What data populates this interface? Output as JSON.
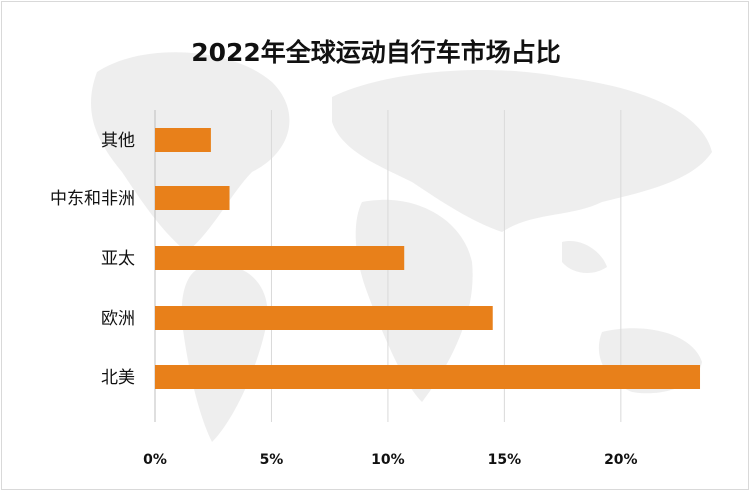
{
  "chart_data": {
    "type": "bar",
    "orientation": "horizontal",
    "title": "2022年全球运动自行车市场占比",
    "xlabel": "",
    "ylabel": "",
    "categories": [
      "北美",
      "欧洲",
      "亚太",
      "中东和非洲",
      "其他"
    ],
    "values": [
      0.234,
      0.145,
      0.107,
      0.032,
      0.024
    ],
    "xlim": [
      0,
      0.24
    ],
    "xticks": [
      0,
      0.05,
      0.1,
      0.15,
      0.2
    ],
    "xtick_labels": [
      "0%",
      "5%",
      "10%",
      "15%",
      "20%"
    ],
    "grid": true,
    "legend": "none",
    "bar_color": "#e8801a"
  },
  "colors": {
    "bar": "#e8801a",
    "grid": "#d9d9d9",
    "background_map": "#ececec"
  }
}
